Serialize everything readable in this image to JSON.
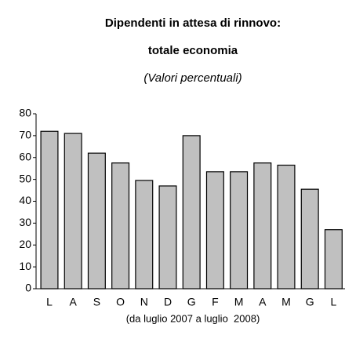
{
  "chart_data": {
    "type": "bar",
    "title": [
      "Dipendenti in attesa di rinnovo:",
      "totale economia"
    ],
    "subtitle": "(Valori percentuali)",
    "footnote": "(da luglio 2007 a luglio  2008)",
    "categories": [
      "L",
      "A",
      "S",
      "O",
      "N",
      "D",
      "G",
      "F",
      "M",
      "A",
      "M",
      "G",
      "L"
    ],
    "values": [
      72,
      71,
      62,
      57.5,
      49.5,
      47,
      70,
      53.5,
      53.5,
      57.5,
      56.5,
      45.5,
      27
    ],
    "color": "#c0c0c0",
    "edgecolor": "#000000",
    "ylim": [
      0,
      80
    ],
    "yticks": [
      0,
      10,
      20,
      30,
      40,
      50,
      60,
      70,
      80
    ],
    "grid": false
  }
}
